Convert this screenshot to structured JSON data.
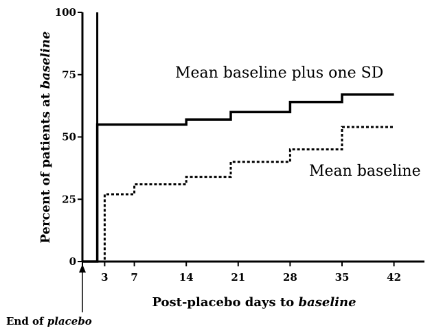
{
  "chart_data": {
    "type": "line",
    "xlabel": {
      "text": "Post-placebo days to ",
      "emph": "baseline"
    },
    "ylabel": {
      "text": "Percent of patients at ",
      "emph": "baseline"
    },
    "xlim": [
      -1,
      46
    ],
    "ylim": [
      0,
      100
    ],
    "x_ticks": [
      0,
      3,
      7,
      14,
      21,
      28,
      35,
      42
    ],
    "x_tick_labels": [
      "",
      "3",
      "7",
      "14",
      "21",
      "28",
      "35",
      "42"
    ],
    "y_ticks": [
      0,
      25,
      50,
      75,
      100
    ],
    "y_tick_labels": [
      "0",
      "25",
      "50",
      "75",
      "100"
    ],
    "series": [
      {
        "name": "Mean baseline plus one SD",
        "style": "solid",
        "x": [
          0,
          2,
          3,
          7,
          14,
          20,
          28,
          35,
          42
        ],
        "y": [
          0,
          55,
          55,
          55,
          57,
          60,
          64,
          67,
          67
        ],
        "vertical_segment": [
          2,
          0,
          100
        ]
      },
      {
        "name": "Mean baseline",
        "style": "dotted",
        "x": [
          0,
          3,
          7,
          14,
          20,
          28,
          35,
          42
        ],
        "y": [
          0,
          27,
          31,
          34,
          40,
          45,
          54,
          54
        ]
      }
    ],
    "annotations": [
      {
        "text": "End of ",
        "emph": "placebo",
        "points_to_x": 0
      }
    ]
  }
}
